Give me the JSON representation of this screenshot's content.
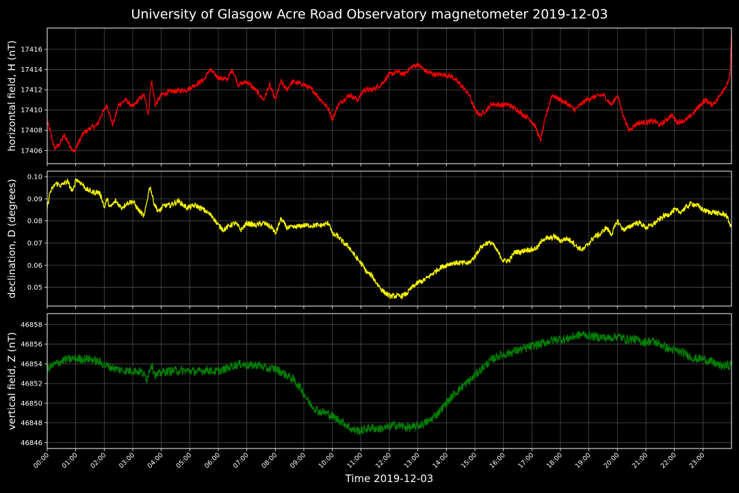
{
  "chart_data": {
    "type": "line",
    "title": "University of Glasgow Acre Road Observatory magnetometer 2019-12-03",
    "xlabel": "Time 2019-12-03",
    "x_ticks": [
      "00:00",
      "01:00",
      "02:00",
      "03:00",
      "04:00",
      "05:00",
      "06:00",
      "07:00",
      "08:00",
      "09:00",
      "10:00",
      "11:00",
      "12:00",
      "13:00",
      "14:00",
      "15:00",
      "16:00",
      "17:00",
      "18:00",
      "19:00",
      "20:00",
      "21:00",
      "22:00",
      "23:00"
    ],
    "xlim": [
      0,
      24
    ],
    "grid": true,
    "panels": [
      {
        "name": "horizontal",
        "ylabel": "horizontal field, H (nT)",
        "color": "#ff0000",
        "ylim": [
          17404.7,
          17418.1
        ],
        "y_ticks": [
          17406,
          17408,
          17410,
          17412,
          17414,
          17416
        ],
        "noise": 0.25,
        "x": [
          0,
          0.1,
          0.25,
          0.4,
          0.6,
          0.8,
          0.95,
          1.05,
          1.25,
          1.5,
          1.75,
          1.9,
          2.1,
          2.3,
          2.5,
          2.75,
          3.0,
          3.2,
          3.4,
          3.55,
          3.65,
          3.8,
          4.0,
          4.3,
          4.6,
          4.9,
          5.2,
          5.5,
          5.7,
          6.0,
          6.3,
          6.5,
          6.7,
          7.0,
          7.3,
          7.6,
          7.8,
          8.0,
          8.2,
          8.4,
          8.6,
          9.0,
          9.3,
          9.6,
          9.9,
          10.0,
          10.2,
          10.4,
          10.6,
          10.9,
          11.1,
          11.4,
          11.7,
          12.0,
          12.3,
          12.5,
          12.8,
          13.0,
          13.3,
          13.6,
          13.9,
          14.2,
          14.5,
          14.8,
          15.0,
          15.2,
          15.4,
          15.6,
          15.9,
          16.2,
          16.5,
          16.7,
          16.9,
          17.1,
          17.3,
          17.5,
          17.7,
          18.0,
          18.3,
          18.5,
          18.7,
          18.9,
          19.2,
          19.5,
          19.8,
          20.0,
          20.2,
          20.4,
          20.7,
          21.0,
          21.3,
          21.5,
          21.7,
          21.9,
          22.1,
          22.4,
          22.6,
          22.9,
          23.1,
          23.3,
          23.5,
          23.7,
          23.85,
          23.95,
          24.0
        ],
        "y": [
          17408.8,
          17408.0,
          17406.2,
          17406.5,
          17407.5,
          17406.5,
          17405.8,
          17406.5,
          17407.6,
          17408.2,
          17408.5,
          17409.5,
          17410.5,
          17408.5,
          17410.5,
          17411.0,
          17410.3,
          17411.0,
          17411.5,
          17409.5,
          17413.0,
          17410.5,
          17411.5,
          17411.8,
          17411.9,
          17412.0,
          17412.5,
          17413.0,
          17414.0,
          17413.2,
          17413.0,
          17414.0,
          17412.5,
          17412.8,
          17412.0,
          17411.0,
          17412.5,
          17411.0,
          17412.8,
          17412.0,
          17412.8,
          17412.5,
          17412.0,
          17411.0,
          17410.0,
          17409.0,
          17410.5,
          17411.0,
          17411.5,
          17411.0,
          17412.0,
          17412.0,
          17412.5,
          17413.5,
          17413.8,
          17413.5,
          17414.3,
          17414.5,
          17413.8,
          17413.5,
          17413.5,
          17413.3,
          17412.5,
          17411.5,
          17410.0,
          17409.5,
          17410.0,
          17410.6,
          17410.5,
          17410.5,
          17410.0,
          17409.5,
          17409.2,
          17408.5,
          17407.0,
          17409.5,
          17411.5,
          17411.0,
          17410.5,
          17410.0,
          17410.5,
          17411.0,
          17411.3,
          17411.5,
          17410.5,
          17411.5,
          17409.5,
          17408.0,
          17408.7,
          17408.8,
          17408.9,
          17408.5,
          17409.0,
          17409.5,
          17408.8,
          17409.0,
          17409.5,
          17410.5,
          17411.0,
          17410.5,
          17411.0,
          17412.0,
          17412.5,
          17413.5,
          17417.5
        ]
      },
      {
        "name": "declination",
        "ylabel": "declination, D (degrees)",
        "color": "#ffff00",
        "ylim": [
          0.0415,
          0.1025
        ],
        "y_ticks": [
          0.05,
          0.06,
          0.07,
          0.08,
          0.09,
          0.1
        ],
        "y_tick_labels": [
          "0.05",
          "0.06",
          "0.07",
          "0.08",
          "0.09",
          "0.10"
        ],
        "noise": 0.0012,
        "x": [
          0,
          0.1,
          0.3,
          0.5,
          0.7,
          0.9,
          1.0,
          1.2,
          1.4,
          1.6,
          1.8,
          1.9,
          2.0,
          2.1,
          2.2,
          2.4,
          2.6,
          2.8,
          3.0,
          3.2,
          3.4,
          3.6,
          3.75,
          3.9,
          4.1,
          4.3,
          4.6,
          4.9,
          5.2,
          5.5,
          5.8,
          6.0,
          6.2,
          6.4,
          6.6,
          6.8,
          7.0,
          7.3,
          7.6,
          7.9,
          8.0,
          8.2,
          8.4,
          8.6,
          9.0,
          9.3,
          9.6,
          9.9,
          10.0,
          10.2,
          10.4,
          10.6,
          10.8,
          11.0,
          11.2,
          11.4,
          11.6,
          11.8,
          12.0,
          12.2,
          12.4,
          12.6,
          12.8,
          13.0,
          13.2,
          13.4,
          13.6,
          13.8,
          14.0,
          14.2,
          14.4,
          14.6,
          14.8,
          15.0,
          15.2,
          15.4,
          15.6,
          15.8,
          16.0,
          16.2,
          16.4,
          16.6,
          16.8,
          17.0,
          17.2,
          17.4,
          17.6,
          17.8,
          18.0,
          18.2,
          18.4,
          18.6,
          18.8,
          19.0,
          19.2,
          19.4,
          19.6,
          19.8,
          20.0,
          20.2,
          20.4,
          20.6,
          20.8,
          21.0,
          21.2,
          21.4,
          21.6,
          21.8,
          22.0,
          22.2,
          22.4,
          22.6,
          22.8,
          23.0,
          23.2,
          23.4,
          23.6,
          23.8,
          24.0
        ],
        "y": [
          0.086,
          0.093,
          0.097,
          0.096,
          0.098,
          0.093,
          0.099,
          0.097,
          0.094,
          0.093,
          0.093,
          0.091,
          0.086,
          0.09,
          0.086,
          0.089,
          0.086,
          0.088,
          0.089,
          0.085,
          0.082,
          0.096,
          0.088,
          0.084,
          0.087,
          0.087,
          0.089,
          0.086,
          0.087,
          0.085,
          0.082,
          0.078,
          0.076,
          0.078,
          0.079,
          0.076,
          0.079,
          0.078,
          0.079,
          0.077,
          0.074,
          0.081,
          0.077,
          0.077,
          0.078,
          0.078,
          0.078,
          0.079,
          0.074,
          0.073,
          0.07,
          0.068,
          0.064,
          0.061,
          0.057,
          0.055,
          0.051,
          0.048,
          0.046,
          0.046,
          0.046,
          0.047,
          0.05,
          0.052,
          0.053,
          0.055,
          0.057,
          0.059,
          0.06,
          0.061,
          0.061,
          0.061,
          0.061,
          0.064,
          0.068,
          0.07,
          0.07,
          0.066,
          0.062,
          0.062,
          0.066,
          0.066,
          0.067,
          0.067,
          0.068,
          0.072,
          0.072,
          0.073,
          0.071,
          0.072,
          0.071,
          0.068,
          0.067,
          0.07,
          0.073,
          0.074,
          0.077,
          0.074,
          0.08,
          0.076,
          0.077,
          0.079,
          0.079,
          0.077,
          0.078,
          0.08,
          0.082,
          0.083,
          0.085,
          0.084,
          0.086,
          0.088,
          0.087,
          0.085,
          0.084,
          0.084,
          0.083,
          0.083,
          0.077
        ]
      },
      {
        "name": "vertical",
        "ylabel": "vertical field, Z (nT)",
        "color": "#008000",
        "ylim": [
          46845.4,
          46859.1
        ],
        "y_ticks": [
          46846,
          46848,
          46850,
          46852,
          46854,
          46856,
          46858
        ],
        "noise": 0.45,
        "x": [
          0,
          0.3,
          0.6,
          0.9,
          1.2,
          1.5,
          1.8,
          2.1,
          2.4,
          2.7,
          3.0,
          3.3,
          3.5,
          3.65,
          3.8,
          4.1,
          4.4,
          4.7,
          5.0,
          5.3,
          5.6,
          5.9,
          6.2,
          6.5,
          6.8,
          7.1,
          7.4,
          7.7,
          8.0,
          8.3,
          8.6,
          8.9,
          9.2,
          9.5,
          9.8,
          10.1,
          10.4,
          10.7,
          11.0,
          11.3,
          11.6,
          11.9,
          12.2,
          12.5,
          12.8,
          13.1,
          13.4,
          13.7,
          14.0,
          14.3,
          14.6,
          14.9,
          15.2,
          15.5,
          15.8,
          16.1,
          16.4,
          16.7,
          17.0,
          17.3,
          17.6,
          17.9,
          18.2,
          18.5,
          18.8,
          19.1,
          19.4,
          19.7,
          20.0,
          20.3,
          20.6,
          20.9,
          21.2,
          21.5,
          21.8,
          22.1,
          22.4,
          22.7,
          23.0,
          23.3,
          23.6,
          23.9,
          24.0
        ],
        "y": [
          46853.5,
          46854.0,
          46854.4,
          46854.5,
          46854.5,
          46854.5,
          46854.2,
          46853.8,
          46853.5,
          46853.3,
          46853.3,
          46853.2,
          46852.5,
          46854.0,
          46852.8,
          46853.2,
          46853.3,
          46853.3,
          46853.3,
          46853.2,
          46853.4,
          46853.2,
          46853.4,
          46853.8,
          46854.0,
          46853.8,
          46853.9,
          46853.5,
          46853.5,
          46853.0,
          46852.5,
          46851.5,
          46850.0,
          46849.2,
          46849.0,
          46848.5,
          46848.0,
          46847.3,
          46847.2,
          46847.5,
          46847.4,
          46847.5,
          46847.8,
          46847.6,
          46847.5,
          46847.8,
          46848.2,
          46849.0,
          46850.0,
          46851.0,
          46851.8,
          46852.5,
          46853.4,
          46854.2,
          46854.8,
          46855.0,
          46855.3,
          46855.5,
          46855.8,
          46856.0,
          46856.3,
          46856.5,
          46856.5,
          46856.8,
          46857.0,
          46856.8,
          46856.7,
          46856.6,
          46856.8,
          46856.5,
          46856.5,
          46856.2,
          46856.3,
          46856.0,
          46855.5,
          46855.3,
          46855.0,
          46854.5,
          46854.5,
          46854.2,
          46853.8,
          46853.8,
          46854.0
        ]
      }
    ]
  }
}
